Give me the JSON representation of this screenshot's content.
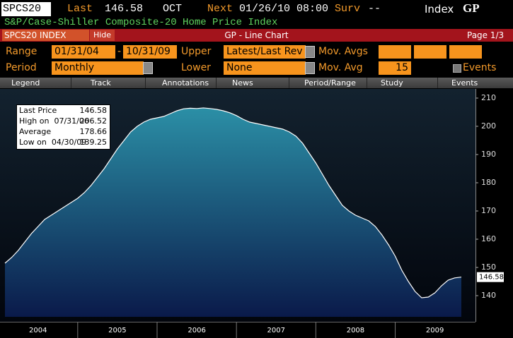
{
  "header": {
    "ticker": "SPCS20",
    "last_label": "Last",
    "last": "146.58",
    "month": "OCT",
    "next_label": "Next",
    "next": "01/26/10 08:00",
    "surv_label": "Surv",
    "surv": "--",
    "kind": "Index",
    "function": "GP"
  },
  "subtitle": "S&P/Case-Shiller Composite-20 Home Price Index",
  "titlebar": {
    "security": "SPCS20 INDEX",
    "hide": "Hide",
    "title": "GP - Line Chart",
    "page": "Page 1/3"
  },
  "form": {
    "range_label": "Range",
    "range_start": "01/31/04",
    "range_sep": "-",
    "range_end": "10/31/09",
    "upper_label": "Upper",
    "upper": "Latest/Last Rev",
    "mov_avgs_label": "Mov. Avgs",
    "period_label": "Period",
    "period": "Monthly",
    "lower_label": "Lower",
    "lower": "None",
    "mov_avg_label": "Mov. Avg",
    "mov_avg": "15",
    "events_label": "Events"
  },
  "toolbar": [
    "Legend",
    "Track",
    "Annotations",
    "News",
    "Period/Range",
    "Study",
    "Events"
  ],
  "stats": [
    {
      "label": "Last Price",
      "value": "146.58"
    },
    {
      "label": "High on  07/31/06",
      "value": "206.52"
    },
    {
      "label": "Average",
      "value": "178.66"
    },
    {
      "label": "Low on  04/30/09",
      "value": "139.25"
    }
  ],
  "chart_data": {
    "type": "area",
    "categories": [
      null,
      null,
      null,
      null,
      null,
      "2004",
      null,
      null,
      null,
      null,
      null,
      null,
      null,
      null,
      null,
      null,
      null,
      "2005",
      null,
      null,
      null,
      null,
      null,
      null,
      null,
      null,
      null,
      null,
      null,
      "2006",
      null,
      null,
      null,
      null,
      null,
      null,
      null,
      null,
      null,
      null,
      null,
      "2007",
      null,
      null,
      null,
      null,
      null,
      null,
      null,
      null,
      null,
      null,
      null,
      "2008",
      null,
      null,
      null,
      null,
      null,
      null,
      null,
      null,
      null,
      null,
      null,
      "2009",
      null,
      null,
      null,
      null
    ],
    "values": [
      151.5,
      153.5,
      156,
      159,
      162,
      164.5,
      167,
      168.5,
      170,
      171.5,
      173,
      174.5,
      176.5,
      179,
      182,
      185,
      188.5,
      192,
      195,
      198,
      200,
      201.5,
      202.5,
      203,
      203.5,
      204.5,
      205.5,
      206.2,
      206.4,
      206.3,
      206.52,
      206.3,
      206,
      205.5,
      204.8,
      203.8,
      202.5,
      201.5,
      201,
      200.5,
      200,
      199.5,
      199,
      198,
      196.5,
      194,
      190.5,
      187,
      183,
      179,
      175.5,
      172,
      170,
      168.5,
      167.5,
      166.5,
      164.5,
      161.5,
      158,
      154,
      149,
      145,
      141.5,
      139.25,
      139.5,
      141,
      143.5,
      145.5,
      146.3,
      146.58
    ],
    "ylim": [
      132.5,
      213
    ],
    "yticks": [
      140,
      150,
      160,
      170,
      180,
      190,
      200,
      210
    ],
    "line_color": "#ffffff",
    "area_colors": [
      "#2b8fa6",
      "#0a1a4a"
    ]
  }
}
